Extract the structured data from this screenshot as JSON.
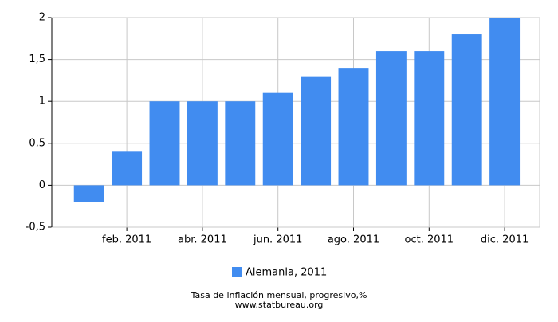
{
  "chart_data": {
    "type": "bar",
    "categories": [
      null,
      "feb. 2011",
      null,
      "abr. 2011",
      null,
      "jun. 2011",
      null,
      "ago. 2011",
      null,
      "oct. 2011",
      null,
      "dic. 2011"
    ],
    "series": [
      {
        "name": "Alemania, 2011",
        "color": "#418cf0",
        "values": [
          -0.2,
          0.4,
          1.0,
          1.0,
          1.0,
          1.1,
          1.3,
          1.4,
          1.6,
          1.6,
          1.8,
          2.0
        ]
      }
    ],
    "ylim": [
      -0.5,
      2
    ],
    "yticks": [
      {
        "value": -0.5,
        "label": "-0,5"
      },
      0,
      {
        "value": 0.5,
        "label": "0,5"
      },
      1,
      {
        "value": 1.5,
        "label": "1,5"
      },
      2
    ],
    "grid": true,
    "footer": [
      "Tasa de inflación mensual, progresivo,%",
      "www.statbureau.org"
    ]
  }
}
